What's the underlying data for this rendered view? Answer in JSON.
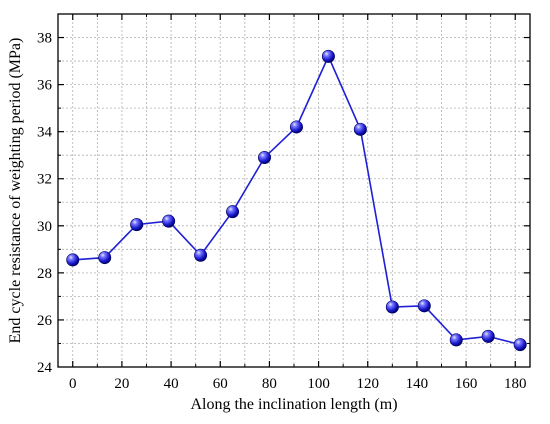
{
  "chart_data": {
    "type": "line",
    "title": "",
    "xlabel": "Along the inclination length (m)",
    "ylabel": "End cycle resistance of weighting period (MPa)",
    "xlim": [
      -6,
      186
    ],
    "ylim": [
      24,
      39
    ],
    "x_ticks": [
      0,
      20,
      40,
      60,
      80,
      100,
      120,
      140,
      160,
      180
    ],
    "y_ticks": [
      24,
      26,
      28,
      30,
      32,
      34,
      36,
      38
    ],
    "x_tick_labels": [
      "0",
      "20",
      "40",
      "60",
      "80",
      "100",
      "120",
      "140",
      "160",
      "180"
    ],
    "y_tick_labels": [
      "24",
      "26",
      "28",
      "30",
      "32",
      "34",
      "36",
      "38"
    ],
    "grid": true,
    "legend": false,
    "series": [
      {
        "x": [
          0,
          13,
          26,
          39,
          52,
          65,
          78,
          91,
          104,
          117,
          130,
          143,
          156,
          169,
          182
        ],
        "y": [
          28.55,
          28.65,
          30.05,
          30.2,
          28.75,
          30.6,
          32.9,
          34.2,
          37.2,
          34.1,
          26.55,
          26.6,
          25.15,
          25.3,
          24.95
        ],
        "color": "#1f1fd6",
        "marker": "sphere"
      }
    ]
  }
}
